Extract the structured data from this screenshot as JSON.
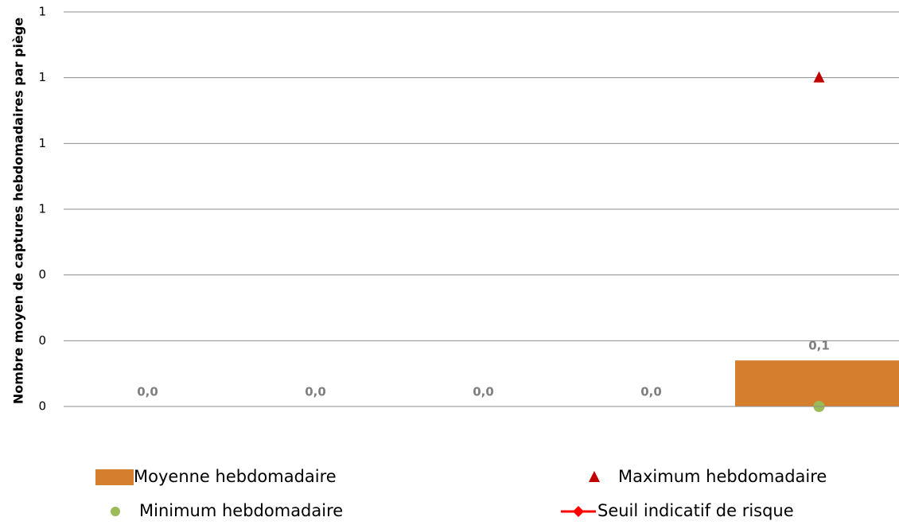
{
  "chart_data": {
    "type": "bar",
    "y_label": "Nombre moyen de captures hebdomadaires par piège",
    "categories": [
      null,
      null,
      null,
      null,
      null
    ],
    "series": [
      {
        "name": "Moyenne hebdomadaire",
        "type": "bar",
        "color": "#d57f2e",
        "values": [
          0,
          0,
          0,
          0,
          0.14
        ],
        "value_labels": [
          "0,0",
          "0,0",
          "0,0",
          "0,0",
          "0,1"
        ]
      },
      {
        "name": "Maximum hebdomadaire",
        "type": "scatter",
        "marker": "triangle",
        "color": "#c00000",
        "values": [
          null,
          null,
          null,
          null,
          1.0
        ]
      },
      {
        "name": "Minimum hebdomadaire",
        "type": "scatter",
        "marker": "circle",
        "color": "#9bbb59",
        "values": [
          null,
          null,
          null,
          null,
          0
        ]
      },
      {
        "name": "Seuil indicatif de risque",
        "type": "line",
        "marker": "diamond",
        "color": "#ff0000",
        "values": [
          null,
          null,
          null,
          null,
          null
        ]
      }
    ],
    "ylim": [
      0,
      1.2
    ],
    "yticks": [
      {
        "value": 0,
        "label": "0"
      },
      {
        "value": 0.2,
        "label": "0"
      },
      {
        "value": 0.4,
        "label": "0"
      },
      {
        "value": 0.6,
        "label": "1"
      },
      {
        "value": 0.8,
        "label": "1"
      },
      {
        "value": 1.0,
        "label": "1"
      },
      {
        "value": 1.2,
        "label": "1"
      }
    ],
    "grid": true
  }
}
